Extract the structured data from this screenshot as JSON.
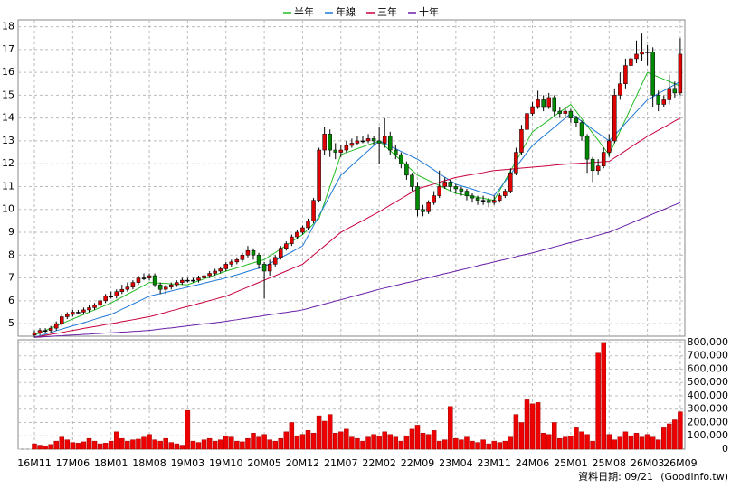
{
  "chart_data": {
    "type": "candlestick",
    "legend": "top",
    "grid": true,
    "up_color": "#e00000",
    "down_color": "#008800",
    "flat_color": "#000000",
    "categories": [
      "16M11",
      null,
      null,
      null,
      null,
      null,
      null,
      "17M06",
      null,
      null,
      null,
      null,
      null,
      null,
      "18M01",
      null,
      null,
      null,
      null,
      null,
      null,
      "18M08",
      null,
      null,
      null,
      null,
      null,
      null,
      "19M03",
      null,
      null,
      null,
      null,
      null,
      null,
      "19M10",
      null,
      null,
      null,
      null,
      null,
      null,
      "20M05",
      null,
      null,
      null,
      null,
      null,
      null,
      "20M12",
      null,
      null,
      null,
      null,
      null,
      null,
      "21M07",
      null,
      null,
      null,
      null,
      null,
      null,
      "22M02",
      null,
      null,
      null,
      null,
      null,
      null,
      "22M09",
      null,
      null,
      null,
      null,
      null,
      null,
      "23M04",
      null,
      null,
      null,
      null,
      null,
      null,
      "23M11",
      null,
      null,
      null,
      null,
      null,
      null,
      "24M06",
      null,
      null,
      null,
      null,
      null,
      null,
      "25M01",
      null,
      null,
      null,
      null,
      null,
      null,
      "25M08",
      null,
      null,
      null,
      null,
      null,
      null,
      "26M03",
      null,
      null,
      null,
      null,
      null,
      "26M09"
    ],
    "open": [
      4.5,
      4.6,
      4.7,
      4.7,
      4.8,
      5.0,
      5.3,
      5.4,
      5.5,
      5.5,
      5.6,
      5.7,
      5.8,
      6.0,
      6.2,
      6.2,
      6.4,
      6.5,
      6.6,
      6.8,
      7.0,
      7.0,
      7.1,
      6.7,
      6.5,
      6.6,
      6.7,
      6.8,
      6.9,
      6.9,
      6.9,
      7.0,
      7.1,
      7.2,
      7.3,
      7.4,
      7.6,
      7.7,
      7.8,
      8.0,
      8.2,
      8.0,
      7.6,
      7.3,
      7.6,
      7.9,
      8.3,
      8.5,
      8.8,
      9.0,
      9.2,
      9.5,
      10.4,
      12.6,
      13.3,
      12.6,
      12.5,
      12.6,
      12.8,
      12.9,
      13.0,
      13.0,
      13.1,
      13.0,
      12.9,
      13.2,
      12.6,
      12.4,
      12.0,
      11.5,
      11.0,
      10.0,
      9.9,
      10.3,
      10.6,
      11.0,
      11.2,
      11.0,
      10.9,
      10.8,
      10.6,
      10.5,
      10.4,
      10.4,
      10.3,
      10.4,
      10.6,
      10.8,
      11.6,
      12.5,
      13.5,
      14.2,
      14.5,
      14.8,
      14.5,
      14.9,
      14.3,
      14.2,
      14.3,
      14.0,
      13.8,
      13.2,
      12.2,
      11.7,
      11.9,
      12.5,
      13.0,
      15.0,
      15.5,
      16.3,
      16.6,
      16.8,
      16.9,
      16.9,
      15.0,
      14.6,
      14.8,
      15.3,
      15.1
    ],
    "high": [
      4.7,
      4.8,
      4.8,
      4.9,
      5.1,
      5.4,
      5.5,
      5.6,
      5.6,
      5.7,
      5.8,
      5.9,
      6.1,
      6.3,
      6.4,
      6.5,
      6.7,
      6.8,
      6.9,
      7.1,
      7.2,
      7.2,
      7.2,
      6.8,
      6.7,
      6.8,
      6.9,
      7.0,
      7.0,
      7.0,
      7.1,
      7.2,
      7.3,
      7.4,
      7.5,
      7.7,
      7.8,
      7.9,
      8.1,
      8.4,
      8.3,
      8.1,
      7.7,
      7.8,
      8.0,
      8.4,
      8.6,
      8.9,
      9.1,
      9.3,
      9.6,
      10.5,
      12.7,
      13.6,
      13.5,
      12.9,
      12.8,
      13.0,
      13.1,
      13.2,
      13.2,
      13.3,
      13.2,
      13.6,
      14.0,
      13.4,
      12.8,
      12.5,
      12.1,
      11.6,
      11.2,
      10.2,
      10.4,
      10.8,
      11.7,
      11.4,
      11.3,
      11.1,
      11.0,
      10.9,
      10.7,
      10.6,
      10.6,
      10.5,
      10.6,
      10.7,
      10.9,
      11.8,
      12.7,
      13.7,
      14.4,
      14.7,
      15.2,
      15.0,
      15.1,
      15.0,
      14.5,
      14.5,
      14.4,
      14.1,
      13.9,
      13.3,
      12.3,
      12.2,
      12.7,
      13.3,
      15.3,
      16.0,
      16.6,
      17.2,
      17.4,
      17.7,
      17.2,
      17.1,
      15.2,
      15.0,
      15.9,
      15.6,
      17.5
    ],
    "low": [
      4.4,
      4.5,
      4.6,
      4.6,
      4.7,
      4.9,
      5.2,
      5.3,
      5.4,
      5.4,
      5.5,
      5.6,
      5.7,
      5.9,
      6.1,
      6.1,
      6.3,
      6.4,
      6.5,
      6.7,
      6.9,
      6.9,
      6.6,
      6.3,
      6.3,
      6.5,
      6.6,
      6.7,
      6.8,
      6.8,
      6.8,
      6.9,
      7.0,
      7.1,
      7.2,
      7.3,
      7.5,
      7.6,
      7.7,
      7.9,
      7.8,
      7.4,
      6.1,
      7.1,
      7.5,
      7.8,
      8.2,
      8.4,
      8.7,
      8.9,
      9.1,
      9.4,
      10.3,
      12.4,
      12.3,
      12.2,
      12.3,
      12.5,
      12.7,
      12.8,
      12.9,
      12.9,
      12.8,
      12.0,
      12.7,
      12.4,
      12.2,
      11.8,
      11.3,
      10.8,
      9.7,
      9.7,
      9.8,
      10.2,
      10.5,
      10.9,
      10.8,
      10.7,
      10.6,
      10.4,
      10.3,
      10.2,
      10.2,
      10.1,
      10.2,
      10.3,
      10.5,
      10.7,
      11.5,
      12.4,
      13.4,
      14.1,
      14.4,
      14.3,
      14.4,
      14.1,
      14.0,
      14.0,
      13.8,
      13.6,
      13.0,
      11.6,
      11.2,
      11.5,
      11.8,
      12.3,
      12.9,
      14.8,
      15.3,
      16.1,
      16.4,
      16.5,
      16.3,
      14.5,
      14.3,
      14.5,
      14.6,
      14.9,
      15.0
    ],
    "close": [
      4.6,
      4.7,
      4.7,
      4.8,
      5.0,
      5.3,
      5.4,
      5.5,
      5.5,
      5.6,
      5.7,
      5.8,
      6.0,
      6.2,
      6.2,
      6.4,
      6.5,
      6.6,
      6.8,
      7.0,
      7.0,
      7.1,
      6.7,
      6.5,
      6.6,
      6.7,
      6.8,
      6.9,
      6.9,
      6.9,
      7.0,
      7.1,
      7.2,
      7.3,
      7.4,
      7.6,
      7.7,
      7.8,
      8.0,
      8.2,
      8.0,
      7.6,
      7.3,
      7.6,
      7.9,
      8.3,
      8.5,
      8.8,
      9.0,
      9.2,
      9.5,
      10.4,
      12.6,
      13.3,
      12.6,
      12.5,
      12.6,
      12.8,
      12.9,
      13.0,
      13.0,
      13.1,
      13.0,
      12.9,
      13.2,
      12.6,
      12.4,
      12.0,
      11.5,
      11.0,
      10.0,
      9.9,
      10.3,
      10.6,
      11.0,
      11.2,
      11.0,
      10.9,
      10.8,
      10.6,
      10.5,
      10.4,
      10.4,
      10.3,
      10.4,
      10.6,
      10.8,
      11.6,
      12.5,
      13.5,
      14.2,
      14.5,
      14.8,
      14.5,
      14.9,
      14.3,
      14.2,
      14.3,
      14.0,
      13.8,
      13.2,
      12.2,
      11.7,
      11.9,
      12.5,
      13.0,
      15.0,
      15.5,
      16.3,
      16.6,
      16.8,
      16.9,
      16.9,
      15.0,
      14.6,
      14.8,
      15.3,
      15.1,
      16.8
    ],
    "ylim": [
      4.45,
      18.3
    ],
    "yticks": [
      5,
      6,
      7,
      8,
      9,
      10,
      11,
      12,
      13,
      14,
      15,
      16,
      17,
      18
    ],
    "series": [
      {
        "name": "半年",
        "color": "#22bb22",
        "values": [
          4.5,
          4.6,
          4.7,
          4.8,
          4.9,
          5.0,
          5.1,
          5.2,
          5.3,
          5.4,
          5.5,
          5.6,
          5.7,
          5.8,
          5.9,
          6.03,
          6.16,
          6.29,
          6.41,
          6.54,
          6.67,
          6.8,
          6.79,
          6.77,
          6.76,
          6.74,
          6.73,
          6.71,
          6.7,
          6.79,
          6.87,
          6.96,
          7.04,
          7.13,
          7.21,
          7.3,
          7.37,
          7.44,
          7.51,
          7.59,
          7.66,
          7.73,
          7.8,
          7.96,
          8.11,
          8.27,
          8.43,
          8.59,
          8.74,
          8.9,
          9.13,
          9.37,
          9.6,
          10.3,
          11.0,
          11.7,
          12.4,
          12.49,
          12.57,
          12.66,
          12.74,
          12.83,
          12.91,
          13.0,
          12.79,
          12.57,
          12.36,
          12.14,
          11.93,
          11.71,
          11.5,
          11.39,
          11.27,
          11.16,
          11.04,
          10.93,
          10.81,
          10.7,
          10.66,
          10.61,
          10.57,
          10.53,
          10.49,
          10.44,
          10.4,
          10.83,
          11.26,
          11.69,
          12.11,
          12.54,
          12.97,
          13.4,
          13.57,
          13.74,
          13.91,
          14.09,
          14.26,
          14.43,
          14.6,
          14.29,
          13.97,
          13.66,
          13.34,
          13.03,
          12.71,
          12.4,
          12.91,
          13.43,
          13.94,
          14.46,
          14.97,
          15.49,
          16.0,
          15.9,
          15.8,
          15.7,
          15.6,
          15.5,
          15.4
        ]
      },
      {
        "name": "年線",
        "color": "#1e78d8",
        "values": [
          4.4,
          4.47,
          4.54,
          4.61,
          4.69,
          4.76,
          4.83,
          4.9,
          4.97,
          5.04,
          5.11,
          5.19,
          5.26,
          5.33,
          5.4,
          5.51,
          5.63,
          5.74,
          5.86,
          5.97,
          6.09,
          6.2,
          6.26,
          6.31,
          6.37,
          6.43,
          6.49,
          6.54,
          6.6,
          6.66,
          6.71,
          6.77,
          6.83,
          6.89,
          6.94,
          7.0,
          7.07,
          7.14,
          7.21,
          7.29,
          7.36,
          7.43,
          7.5,
          7.63,
          7.76,
          7.89,
          8.01,
          8.14,
          8.27,
          8.4,
          8.84,
          9.29,
          9.73,
          10.17,
          10.61,
          11.06,
          11.5,
          11.71,
          11.93,
          12.14,
          12.36,
          12.57,
          12.79,
          13.0,
          12.89,
          12.77,
          12.66,
          12.54,
          12.43,
          12.31,
          12.2,
          12.04,
          11.89,
          11.73,
          11.57,
          11.41,
          11.26,
          11.1,
          11.03,
          10.96,
          10.89,
          10.81,
          10.74,
          10.67,
          10.6,
          10.91,
          11.23,
          11.54,
          11.86,
          12.17,
          12.49,
          12.8,
          13.0,
          13.2,
          13.4,
          13.6,
          13.8,
          14.0,
          14.2,
          14.03,
          13.86,
          13.69,
          13.51,
          13.34,
          13.17,
          13.0,
          13.26,
          13.51,
          13.77,
          14.03,
          14.29,
          14.54,
          14.8,
          14.93,
          15.07,
          15.2,
          15.33,
          15.47,
          15.6
        ]
      },
      {
        "name": "三年",
        "color": "#c8003c",
        "values": [
          4.4,
          4.44,
          4.49,
          4.53,
          4.57,
          4.61,
          4.66,
          4.7,
          4.74,
          4.79,
          4.83,
          4.87,
          4.91,
          4.96,
          5.0,
          5.04,
          5.09,
          5.13,
          5.17,
          5.21,
          5.26,
          5.3,
          5.36,
          5.43,
          5.49,
          5.56,
          5.62,
          5.69,
          5.75,
          5.81,
          5.88,
          5.94,
          6.01,
          6.07,
          6.14,
          6.2,
          6.3,
          6.4,
          6.5,
          6.6,
          6.7,
          6.8,
          6.9,
          7.0,
          7.1,
          7.2,
          7.3,
          7.4,
          7.5,
          7.6,
          7.8,
          8.0,
          8.2,
          8.4,
          8.6,
          8.8,
          9.0,
          9.13,
          9.26,
          9.39,
          9.51,
          9.64,
          9.77,
          9.9,
          10.04,
          10.19,
          10.33,
          10.47,
          10.61,
          10.76,
          10.9,
          10.97,
          11.04,
          11.11,
          11.19,
          11.26,
          11.33,
          11.4,
          11.44,
          11.49,
          11.53,
          11.57,
          11.61,
          11.66,
          11.7,
          11.72,
          11.74,
          11.76,
          11.79,
          11.81,
          11.83,
          11.85,
          11.87,
          11.89,
          11.91,
          11.94,
          11.96,
          11.98,
          12.0,
          12.01,
          12.03,
          12.04,
          12.06,
          12.07,
          12.09,
          12.1,
          12.26,
          12.41,
          12.57,
          12.73,
          12.89,
          13.04,
          13.2,
          13.33,
          13.47,
          13.6,
          13.73,
          13.87,
          14.0
        ]
      },
      {
        "name": "十年",
        "color": "#6a1ea8",
        "values": [
          4.4,
          4.41,
          4.43,
          4.44,
          4.46,
          4.47,
          4.49,
          4.5,
          4.51,
          4.53,
          4.54,
          4.56,
          4.57,
          4.59,
          4.6,
          4.61,
          4.63,
          4.64,
          4.66,
          4.67,
          4.69,
          4.7,
          4.73,
          4.76,
          4.79,
          4.81,
          4.84,
          4.87,
          4.9,
          4.93,
          4.96,
          4.99,
          5.01,
          5.04,
          5.07,
          5.1,
          5.14,
          5.17,
          5.21,
          5.24,
          5.28,
          5.31,
          5.35,
          5.39,
          5.42,
          5.46,
          5.49,
          5.53,
          5.56,
          5.6,
          5.66,
          5.73,
          5.79,
          5.86,
          5.92,
          5.99,
          6.05,
          6.11,
          6.18,
          6.24,
          6.31,
          6.37,
          6.44,
          6.5,
          6.56,
          6.61,
          6.67,
          6.73,
          6.79,
          6.84,
          6.9,
          6.96,
          7.01,
          7.07,
          7.13,
          7.19,
          7.24,
          7.3,
          7.36,
          7.41,
          7.47,
          7.53,
          7.59,
          7.64,
          7.7,
          7.76,
          7.81,
          7.87,
          7.93,
          7.99,
          8.04,
          8.1,
          8.16,
          8.23,
          8.29,
          8.36,
          8.42,
          8.49,
          8.55,
          8.61,
          8.68,
          8.74,
          8.81,
          8.87,
          8.94,
          9.0,
          9.1,
          9.2,
          9.3,
          9.4,
          9.5,
          9.6,
          9.7,
          9.8,
          9.9,
          10.0,
          10.1,
          10.2,
          10.3
        ]
      }
    ],
    "volume": {
      "color": "#ee0000",
      "values": [
        40000,
        30000,
        25000,
        35000,
        60000,
        90000,
        70000,
        50000,
        45000,
        55000,
        80000,
        60000,
        40000,
        45000,
        60000,
        130000,
        80000,
        60000,
        70000,
        75000,
        90000,
        110000,
        70000,
        60000,
        80000,
        50000,
        40000,
        30000,
        290000,
        60000,
        50000,
        70000,
        80000,
        60000,
        70000,
        100000,
        90000,
        60000,
        55000,
        80000,
        120000,
        90000,
        110000,
        70000,
        60000,
        80000,
        130000,
        200000,
        100000,
        110000,
        140000,
        120000,
        250000,
        210000,
        260000,
        120000,
        130000,
        150000,
        90000,
        80000,
        60000,
        90000,
        110000,
        100000,
        130000,
        110000,
        90000,
        60000,
        100000,
        150000,
        180000,
        120000,
        110000,
        140000,
        60000,
        70000,
        320000,
        80000,
        70000,
        90000,
        60000,
        50000,
        70000,
        40000,
        60000,
        50000,
        60000,
        90000,
        260000,
        200000,
        370000,
        340000,
        350000,
        120000,
        110000,
        200000,
        80000,
        90000,
        100000,
        160000,
        130000,
        110000,
        60000,
        720000,
        800000,
        110000,
        70000,
        90000,
        130000,
        100000,
        120000,
        90000,
        110000,
        90000,
        70000,
        160000,
        190000,
        220000,
        280000
      ],
      "ylim": [
        0,
        820000
      ],
      "yticks": [
        0,
        {
          "value": 100000,
          "label": "100,000"
        },
        {
          "value": 200000,
          "label": "200,000"
        },
        {
          "value": 300000,
          "label": "300,000"
        },
        {
          "value": 400000,
          "label": "400,000"
        },
        {
          "value": 500000,
          "label": "500,000"
        },
        {
          "value": 600000,
          "label": "600,000"
        },
        {
          "value": 700000,
          "label": "700,000"
        },
        {
          "value": 800000,
          "label": "800,000"
        }
      ]
    },
    "note": "資料日期: 09/21",
    "source": "(Goodinfo.tw)"
  }
}
